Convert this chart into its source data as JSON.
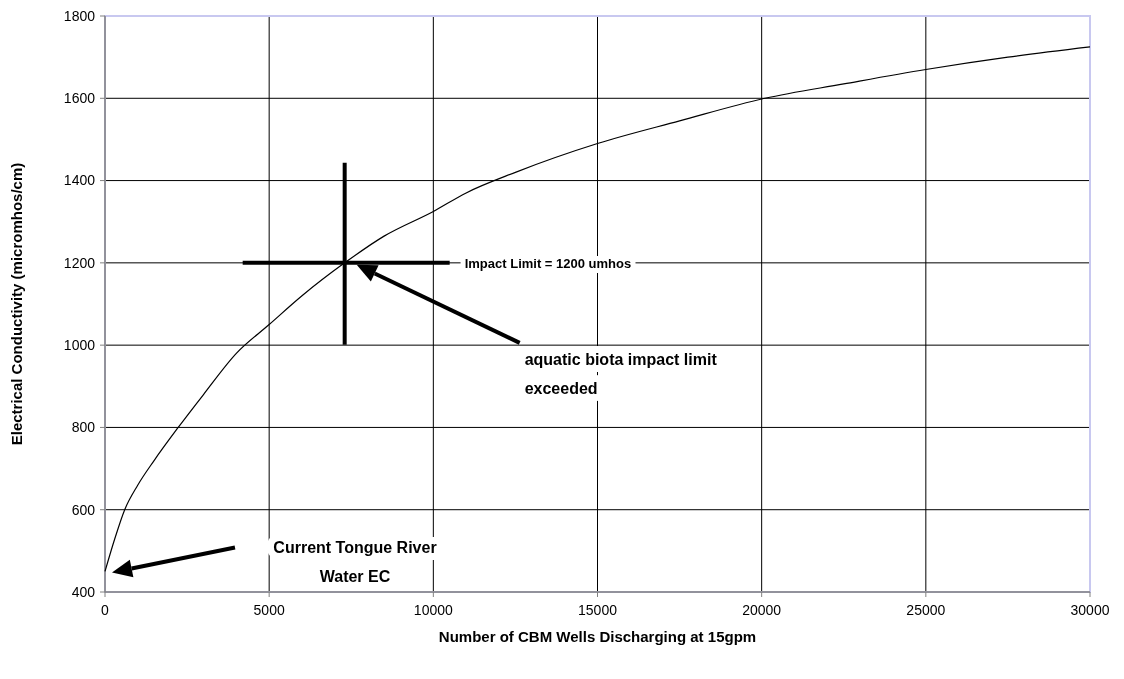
{
  "chart_data": {
    "type": "line",
    "xlabel": "Number of CBM Wells Discharging at 15gpm",
    "ylabel": "Electrical Conductivity (micromhos/cm)",
    "xlim": [
      0,
      30000
    ],
    "ylim": [
      400,
      1800
    ],
    "xticks": [
      0,
      5000,
      10000,
      15000,
      20000,
      25000,
      30000
    ],
    "yticks": [
      400,
      600,
      800,
      1000,
      1200,
      1400,
      1600,
      1800
    ],
    "grid": true,
    "ref_lines": [
      {
        "axis": "y",
        "value": 1200,
        "label": "Impact Limit = 1200 umhos"
      },
      {
        "axis": "x",
        "value": 7300
      }
    ],
    "series": [
      {
        "color": "#000000",
        "x": [
          0,
          300,
          600,
          1000,
          1500,
          2230,
          3000,
          4000,
          5000,
          6000,
          7300,
          8500,
          10000,
          11000,
          12500,
          15000,
          17500,
          20100,
          22500,
          25000,
          27500,
          30000
        ],
        "values": [
          450,
          530,
          600,
          660,
          720,
          800,
          880,
          980,
          1050,
          1120,
          1200,
          1265,
          1325,
          1370,
          1420,
          1490,
          1545,
          1600,
          1635,
          1670,
          1700,
          1725
        ]
      }
    ],
    "annotations": [
      "aquatic biota impact limit exceeded",
      "Current Tongue River Water EC"
    ]
  }
}
